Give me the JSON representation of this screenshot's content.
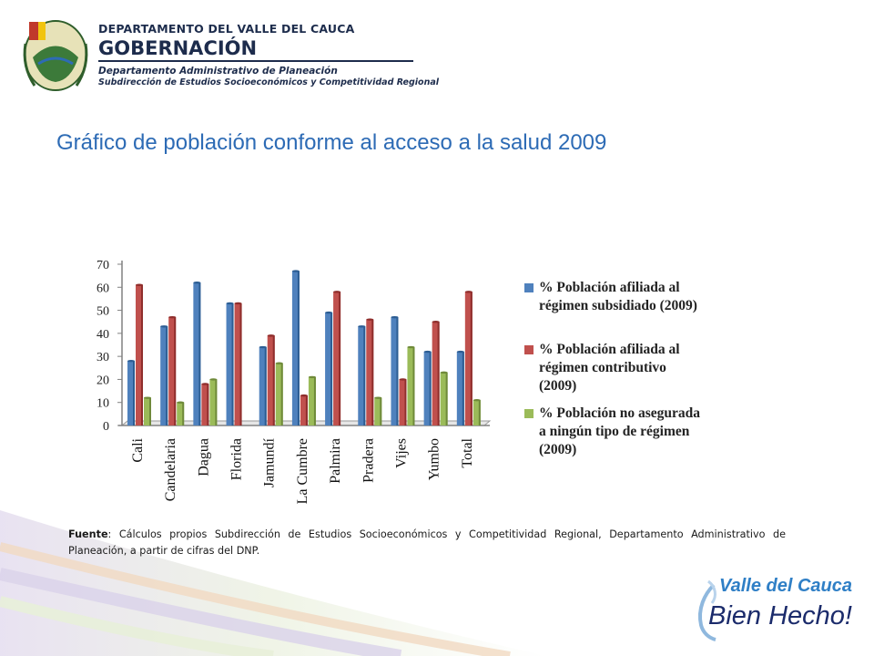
{
  "header": {
    "department": "DEPARTAMENTO DEL VALLE DEL CAUCA",
    "government": "GOBERNACIÓN",
    "office": "Departamento  Administrativo de Planeación",
    "suboffice": "Subdirección de Estudios Socioeconómicos y Competitividad Regional"
  },
  "slide_title": "Gráfico de población  conforme al acceso a la salud 2009",
  "source": {
    "label": "Fuente",
    "text": ": Cálculos propios Subdirección de Estudios Socioeconómicos y Competitividad Regional, Departamento Administrativo de Planeación, a partir de cifras del DNP."
  },
  "slogan": {
    "line1": "Valle del Cauca",
    "line2": "Bien Hecho!"
  },
  "colors": {
    "title_blue": "#2d6bb5",
    "series_blue": "#4f81bd",
    "series_red": "#c0504d",
    "series_green": "#9bbb59"
  },
  "icons": [
    "valle-del-cauca-coat-of-arms-icon",
    "wave-hand-icon"
  ],
  "chart_data": {
    "type": "bar",
    "categories": [
      "Cali",
      "Candelaria",
      "Dagua",
      "Florida",
      "Jamundí",
      "La Cumbre",
      "Palmira",
      "Pradera",
      "Vijes",
      "Yumbo",
      "Total"
    ],
    "series": [
      {
        "name": "% Población afiliada al régimen subsidiado (2009)",
        "values": [
          28,
          43,
          62,
          53,
          34,
          67,
          49,
          43,
          47,
          32,
          32
        ]
      },
      {
        "name": "% Población afiliada al régimen contributivo (2009)",
        "values": [
          61,
          47,
          18,
          53,
          39,
          13,
          58,
          46,
          20,
          45,
          58
        ]
      },
      {
        "name": "% Población no asegurada a ningún tipo de régimen (2009)",
        "values": [
          12,
          10,
          20,
          0,
          27,
          21,
          0,
          12,
          34,
          23,
          11
        ]
      }
    ],
    "ylim": [
      0,
      70
    ],
    "yticks": [
      "0",
      "10",
      "20",
      "30",
      "40",
      "50",
      "60",
      "70"
    ],
    "legend_position": "right",
    "grid": false
  }
}
